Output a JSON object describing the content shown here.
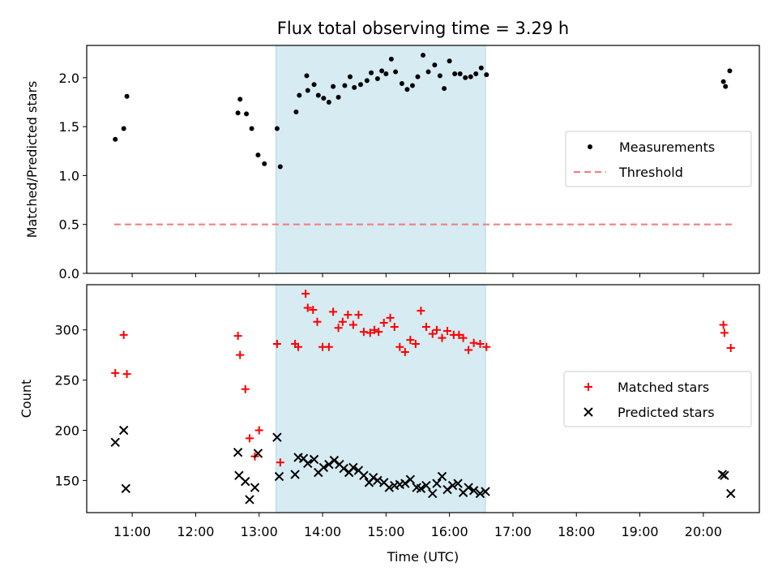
{
  "title": "Flux total observing time = 3.29 h",
  "colors": {
    "highlight": "#add8e6",
    "threshold": "#f08080",
    "matched": "#ff0000",
    "predicted": "#000000",
    "measurement": "#000000"
  },
  "chart_data": [
    {
      "type": "scatter",
      "ylabel": "Matched/Predicted stars",
      "ylim": [
        0,
        2.33
      ],
      "yticks": [
        "0.0",
        "0.5",
        "1.0",
        "1.5",
        "2.0"
      ],
      "highlight_span": [
        "13:16",
        "16:34"
      ],
      "legend": {
        "placement": "right",
        "entries": [
          "Measurements",
          "Threshold"
        ]
      },
      "series": [
        {
          "name": "Measurements",
          "marker": "dot",
          "points": [
            [
              "10:44",
              1.37
            ],
            [
              "10:52",
              1.48
            ],
            [
              "10:55",
              1.81
            ],
            [
              "12:40",
              1.64
            ],
            [
              "12:42",
              1.78
            ],
            [
              "12:48",
              1.63
            ],
            [
              "12:53",
              1.48
            ],
            [
              "12:59",
              1.21
            ],
            [
              "13:05",
              1.12
            ],
            [
              "13:17",
              1.48
            ],
            [
              "13:20",
              1.09
            ],
            [
              "13:35",
              1.65
            ],
            [
              "13:38",
              1.82
            ],
            [
              "13:45",
              2.02
            ],
            [
              "13:46",
              1.87
            ],
            [
              "13:52",
              1.93
            ],
            [
              "13:56",
              1.82
            ],
            [
              "14:01",
              1.79
            ],
            [
              "14:06",
              1.75
            ],
            [
              "14:10",
              1.91
            ],
            [
              "14:15",
              1.8
            ],
            [
              "14:21",
              1.92
            ],
            [
              "14:26",
              2.01
            ],
            [
              "14:30",
              1.9
            ],
            [
              "14:36",
              1.93
            ],
            [
              "14:42",
              1.97
            ],
            [
              "14:46",
              2.05
            ],
            [
              "14:52",
              1.99
            ],
            [
              "14:56",
              2.07
            ],
            [
              "15:00",
              2.04
            ],
            [
              "15:05",
              2.19
            ],
            [
              "15:09",
              2.06
            ],
            [
              "15:15",
              1.94
            ],
            [
              "15:20",
              1.88
            ],
            [
              "15:25",
              1.92
            ],
            [
              "15:30",
              2.01
            ],
            [
              "15:35",
              2.23
            ],
            [
              "15:40",
              2.06
            ],
            [
              "15:46",
              2.13
            ],
            [
              "15:51",
              2.02
            ],
            [
              "15:55",
              1.89
            ],
            [
              "16:00",
              2.17
            ],
            [
              "16:05",
              2.04
            ],
            [
              "16:10",
              2.04
            ],
            [
              "16:15",
              2.0
            ],
            [
              "16:20",
              2.01
            ],
            [
              "16:25",
              2.04
            ],
            [
              "16:30",
              2.1
            ],
            [
              "16:35",
              2.03
            ],
            [
              "20:19",
              1.96
            ],
            [
              "20:21",
              1.91
            ],
            [
              "20:25",
              2.07
            ]
          ]
        },
        {
          "name": "Threshold",
          "style": "dashed",
          "points": [
            [
              "10:43",
              0.5
            ],
            [
              "20:28",
              0.5
            ]
          ]
        }
      ]
    },
    {
      "type": "scatter",
      "xlabel": "Time (UTC)",
      "ylabel": "Count",
      "ylim": [
        118,
        345
      ],
      "yticks": [
        "150",
        "200",
        "250",
        "300"
      ],
      "xlim": [
        "10:17",
        "20:53"
      ],
      "xticks": [
        "11:00",
        "12:00",
        "13:00",
        "14:00",
        "15:00",
        "16:00",
        "17:00",
        "18:00",
        "19:00",
        "20:00"
      ],
      "highlight_span": [
        "13:16",
        "16:34"
      ],
      "legend": {
        "placement": "right",
        "entries": [
          "Matched stars",
          "Predicted stars"
        ]
      },
      "series": [
        {
          "name": "Matched stars",
          "marker": "plus",
          "points": [
            [
              "10:44",
              257
            ],
            [
              "10:52",
              295
            ],
            [
              "10:55",
              256
            ],
            [
              "12:40",
              294
            ],
            [
              "12:42",
              275
            ],
            [
              "12:47",
              241
            ],
            [
              "12:51",
              192
            ],
            [
              "12:56",
              174
            ],
            [
              "13:00",
              200
            ],
            [
              "13:17",
              286
            ],
            [
              "13:20",
              168
            ],
            [
              "13:34",
              286
            ],
            [
              "13:37",
              283
            ],
            [
              "13:44",
              336
            ],
            [
              "13:46",
              322
            ],
            [
              "13:51",
              320
            ],
            [
              "13:55",
              308
            ],
            [
              "14:00",
              283
            ],
            [
              "14:06",
              283
            ],
            [
              "14:10",
              318
            ],
            [
              "14:15",
              302
            ],
            [
              "14:19",
              308
            ],
            [
              "14:24",
              315
            ],
            [
              "14:29",
              305
            ],
            [
              "14:34",
              315
            ],
            [
              "14:39",
              298
            ],
            [
              "14:45",
              297
            ],
            [
              "14:49",
              300
            ],
            [
              "14:53",
              298
            ],
            [
              "14:58",
              307
            ],
            [
              "15:04",
              312
            ],
            [
              "15:08",
              303
            ],
            [
              "15:13",
              283
            ],
            [
              "15:18",
              278
            ],
            [
              "15:23",
              290
            ],
            [
              "15:28",
              286
            ],
            [
              "15:33",
              319
            ],
            [
              "15:38",
              303
            ],
            [
              "15:44",
              296
            ],
            [
              "15:48",
              300
            ],
            [
              "15:53",
              292
            ],
            [
              "15:58",
              299
            ],
            [
              "16:04",
              295
            ],
            [
              "16:09",
              295
            ],
            [
              "16:13",
              292
            ],
            [
              "16:18",
              280
            ],
            [
              "16:23",
              287
            ],
            [
              "16:29",
              286
            ],
            [
              "16:35",
              283
            ],
            [
              "20:19",
              305
            ],
            [
              "20:20",
              297
            ],
            [
              "20:26",
              282
            ]
          ]
        },
        {
          "name": "Predicted stars",
          "marker": "x",
          "points": [
            [
              "10:44",
              188
            ],
            [
              "10:52",
              200
            ],
            [
              "10:54",
              142
            ],
            [
              "12:40",
              178
            ],
            [
              "12:41",
              155
            ],
            [
              "12:47",
              149
            ],
            [
              "12:51",
              131
            ],
            [
              "12:56",
              143
            ],
            [
              "12:59",
              177
            ],
            [
              "13:17",
              193
            ],
            [
              "13:19",
              154
            ],
            [
              "13:34",
              156
            ],
            [
              "13:37",
              173
            ],
            [
              "13:42",
              172
            ],
            [
              "13:46",
              167
            ],
            [
              "13:52",
              171
            ],
            [
              "13:56",
              158
            ],
            [
              "14:01",
              163
            ],
            [
              "14:06",
              166
            ],
            [
              "14:11",
              170
            ],
            [
              "14:16",
              166
            ],
            [
              "14:20",
              162
            ],
            [
              "14:25",
              158
            ],
            [
              "14:29",
              163
            ],
            [
              "14:34",
              160
            ],
            [
              "14:39",
              155
            ],
            [
              "14:44",
              148
            ],
            [
              "14:48",
              153
            ],
            [
              "14:52",
              150
            ],
            [
              "14:58",
              148
            ],
            [
              "15:03",
              143
            ],
            [
              "15:08",
              145
            ],
            [
              "15:13",
              146
            ],
            [
              "15:18",
              147
            ],
            [
              "15:23",
              151
            ],
            [
              "15:29",
              143
            ],
            [
              "15:33",
              142
            ],
            [
              "15:38",
              145
            ],
            [
              "15:44",
              137
            ],
            [
              "15:48",
              147
            ],
            [
              "15:53",
              154
            ],
            [
              "15:58",
              141
            ],
            [
              "16:03",
              145
            ],
            [
              "16:08",
              147
            ],
            [
              "16:13",
              138
            ],
            [
              "16:18",
              143
            ],
            [
              "16:23",
              140
            ],
            [
              "16:29",
              137
            ],
            [
              "16:34",
              139
            ],
            [
              "20:18",
              156
            ],
            [
              "20:20",
              155
            ],
            [
              "20:26",
              137
            ]
          ]
        }
      ]
    }
  ]
}
